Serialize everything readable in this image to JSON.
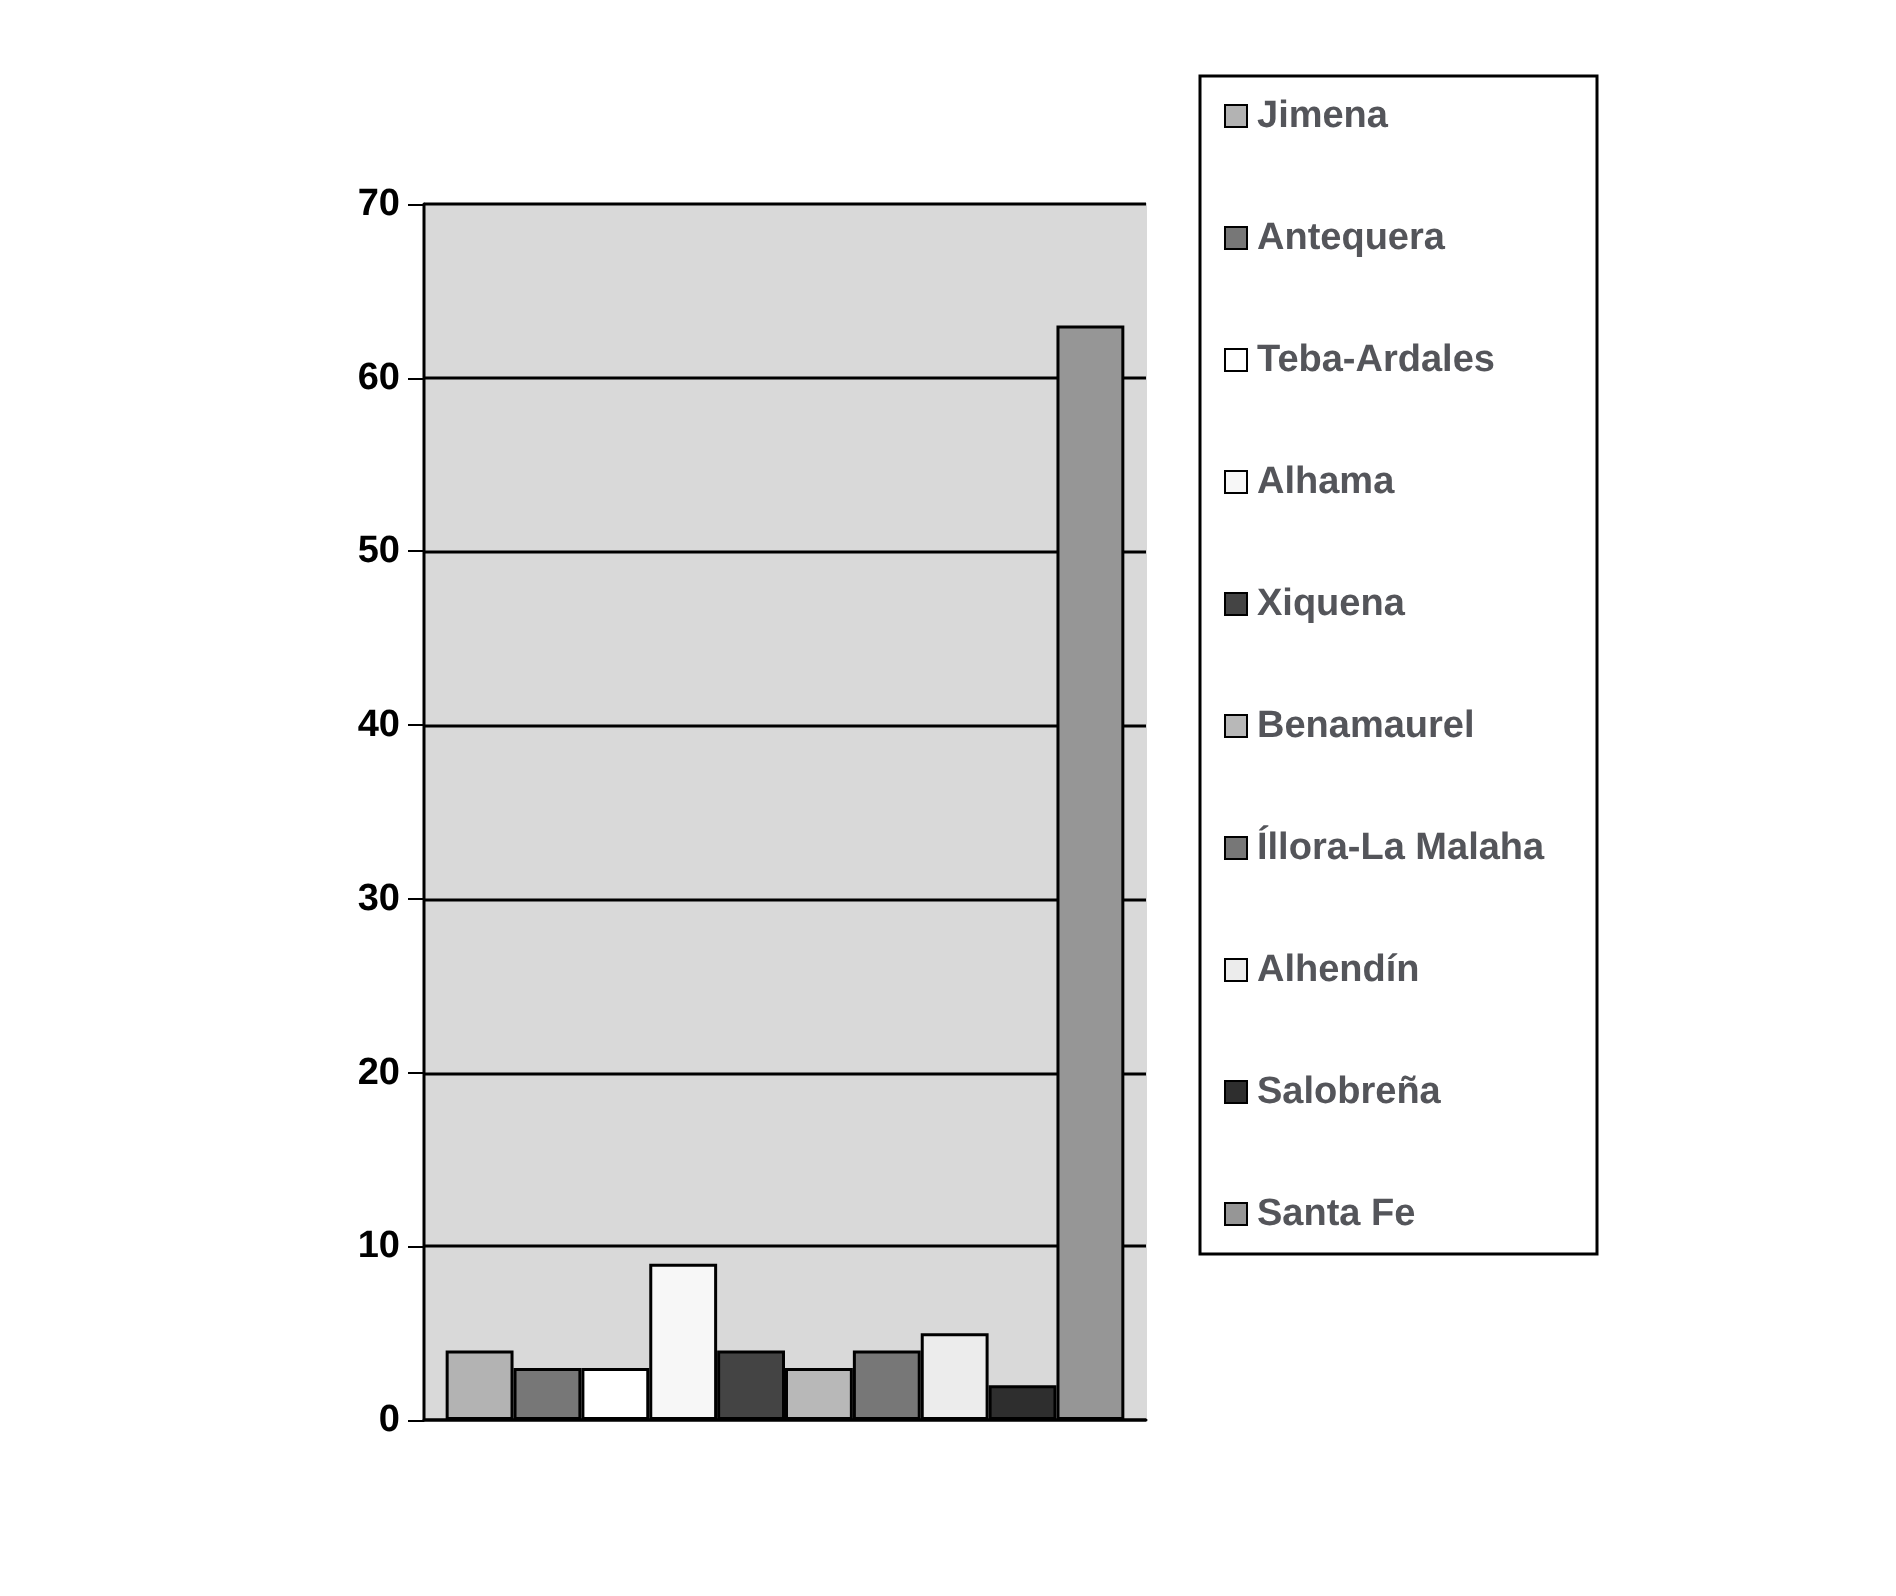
{
  "chart_data": {
    "type": "bar",
    "categories": [
      null
    ],
    "series": [
      {
        "name": "Jimena",
        "color": "#b3b3b3",
        "values": [
          4
        ]
      },
      {
        "name": "Antequera",
        "color": "#777777",
        "values": [
          3
        ]
      },
      {
        "name": "Teba-Ardales",
        "color": "#ffffff",
        "values": [
          3
        ]
      },
      {
        "name": "Alhama",
        "color": "#f7f7f7",
        "values": [
          9
        ]
      },
      {
        "name": "Xiquena",
        "color": "#444444",
        "values": [
          4
        ]
      },
      {
        "name": "Benamaurel",
        "color": "#b8b8b8",
        "values": [
          3
        ]
      },
      {
        "name": "Íllora-La Malaha",
        "color": "#777777",
        "values": [
          4
        ]
      },
      {
        "name": "Alhendín",
        "color": "#ececec",
        "values": [
          5
        ]
      },
      {
        "name": "Salobreña",
        "color": "#2e2e2e",
        "values": [
          2
        ]
      },
      {
        "name": "Santa Fe",
        "color": "#969696",
        "values": [
          63
        ]
      }
    ],
    "ylim": [
      0,
      70
    ],
    "yticks": [
      0,
      10,
      20,
      30,
      40,
      50,
      60,
      70
    ],
    "grid": "y",
    "legend": "right"
  }
}
